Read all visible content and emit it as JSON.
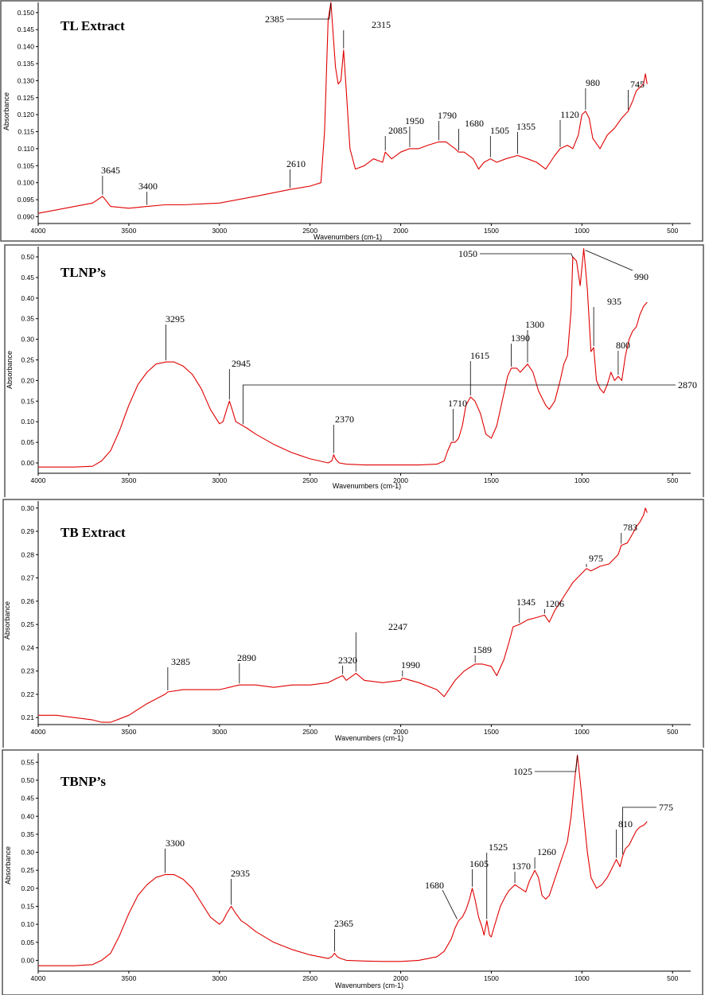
{
  "chart_data": [
    {
      "type": "line",
      "title": "TL Extract",
      "xlabel": "Wavenumbers (cm-1)",
      "ylabel": "Absorbance",
      "xlim": [
        4000,
        400
      ],
      "ylim": [
        0.088,
        0.153
      ],
      "xticks": [
        "4000",
        "3500",
        "3000",
        "2500",
        "2000",
        "1500",
        "1000",
        "500"
      ],
      "yticks": [
        "0.090",
        "0.095",
        "0.100",
        "0.105",
        "0.110",
        "0.115",
        "0.120",
        "0.125",
        "0.130",
        "0.135",
        "0.140",
        "0.145",
        "0.150"
      ],
      "color": "#e00000",
      "series": [
        {
          "x": [
            4000,
            3900,
            3800,
            3700,
            3645,
            3600,
            3500,
            3400,
            3300,
            3200,
            3000,
            2800,
            2610,
            2500,
            2440,
            2420,
            2400,
            2385,
            2360,
            2345,
            2330,
            2315,
            2300,
            2280,
            2250,
            2200,
            2150,
            2100,
            2085,
            2050,
            2000,
            1950,
            1900,
            1850,
            1790,
            1750,
            1700,
            1680,
            1650,
            1600,
            1570,
            1540,
            1505,
            1470,
            1420,
            1355,
            1300,
            1250,
            1200,
            1150,
            1120,
            1080,
            1050,
            1020,
            1000,
            980,
            960,
            940,
            900,
            860,
            820,
            780,
            745,
            720,
            700,
            680,
            660,
            650,
            640
          ],
          "y": [
            0.091,
            0.092,
            0.093,
            0.094,
            0.096,
            0.093,
            0.0925,
            0.093,
            0.0935,
            0.0935,
            0.094,
            0.096,
            0.098,
            0.099,
            0.1,
            0.115,
            0.148,
            0.153,
            0.134,
            0.129,
            0.13,
            0.139,
            0.127,
            0.11,
            0.104,
            0.105,
            0.107,
            0.106,
            0.109,
            0.107,
            0.109,
            0.11,
            0.11,
            0.111,
            0.112,
            0.112,
            0.11,
            0.109,
            0.109,
            0.107,
            0.104,
            0.106,
            0.107,
            0.106,
            0.107,
            0.108,
            0.107,
            0.106,
            0.104,
            0.108,
            0.11,
            0.111,
            0.11,
            0.114,
            0.12,
            0.121,
            0.119,
            0.113,
            0.11,
            0.114,
            0.116,
            0.119,
            0.121,
            0.124,
            0.127,
            0.128,
            0.129,
            0.132,
            0.129
          ]
        }
      ],
      "peaks": [
        {
          "label": "3645",
          "x": 3645,
          "y": 0.096
        },
        {
          "label": "3400",
          "x": 3400,
          "y": 0.093
        },
        {
          "label": "2610",
          "x": 2610,
          "y": 0.098
        },
        {
          "label": "2385",
          "x": 2385,
          "y": 0.153
        },
        {
          "label": "2315",
          "x": 2315,
          "y": 0.139
        },
        {
          "label": "2085",
          "x": 2085,
          "y": 0.109
        },
        {
          "label": "1950",
          "x": 1950,
          "y": 0.11
        },
        {
          "label": "1790",
          "x": 1790,
          "y": 0.112
        },
        {
          "label": "1680",
          "x": 1680,
          "y": 0.109
        },
        {
          "label": "1505",
          "x": 1505,
          "y": 0.107
        },
        {
          "label": "1355",
          "x": 1355,
          "y": 0.108
        },
        {
          "label": "1120",
          "x": 1120,
          "y": 0.11
        },
        {
          "label": "980",
          "x": 980,
          "y": 0.121
        },
        {
          "label": "745",
          "x": 745,
          "y": 0.121
        }
      ]
    },
    {
      "type": "line",
      "title": "TLNP’s",
      "xlabel": "Wavenumbers (cm-1)",
      "ylabel": "Absorbance",
      "xlim": [
        4000,
        400
      ],
      "ylim": [
        -0.025,
        0.525
      ],
      "xticks": [
        "4000",
        "3500",
        "3000",
        "2500",
        "2000",
        "1500",
        "1000",
        "500"
      ],
      "yticks": [
        "0.00",
        "0.05",
        "0.10",
        "0.15",
        "0.20",
        "0.25",
        "0.30",
        "0.35",
        "0.40",
        "0.45",
        "0.50"
      ],
      "color": "#e00000",
      "series": [
        {
          "x": [
            4000,
            3800,
            3700,
            3650,
            3600,
            3550,
            3500,
            3450,
            3400,
            3350,
            3295,
            3250,
            3200,
            3150,
            3100,
            3050,
            3000,
            2980,
            2960,
            2945,
            2930,
            2910,
            2870,
            2850,
            2800,
            2700,
            2600,
            2500,
            2400,
            2380,
            2370,
            2360,
            2340,
            2300,
            2200,
            2100,
            2000,
            1900,
            1800,
            1760,
            1740,
            1720,
            1710,
            1700,
            1680,
            1660,
            1640,
            1615,
            1590,
            1560,
            1530,
            1500,
            1470,
            1440,
            1410,
            1390,
            1360,
            1340,
            1300,
            1270,
            1240,
            1200,
            1180,
            1150,
            1120,
            1100,
            1080,
            1060,
            1050,
            1030,
            1010,
            990,
            970,
            950,
            935,
            920,
            900,
            880,
            860,
            840,
            820,
            800,
            780,
            760,
            740,
            720,
            700,
            680,
            660,
            650,
            640
          ],
          "y": [
            -0.01,
            -0.01,
            -0.008,
            0.005,
            0.03,
            0.08,
            0.14,
            0.19,
            0.22,
            0.24,
            0.245,
            0.245,
            0.235,
            0.215,
            0.18,
            0.13,
            0.095,
            0.1,
            0.13,
            0.15,
            0.13,
            0.1,
            0.09,
            0.085,
            0.07,
            0.045,
            0.025,
            0.01,
            0.0,
            0.005,
            0.02,
            0.01,
            0.0,
            -0.003,
            -0.005,
            -0.005,
            -0.005,
            -0.005,
            -0.003,
            0.005,
            0.03,
            0.05,
            0.05,
            0.05,
            0.06,
            0.09,
            0.14,
            0.16,
            0.15,
            0.12,
            0.07,
            0.06,
            0.09,
            0.15,
            0.21,
            0.23,
            0.23,
            0.22,
            0.24,
            0.22,
            0.175,
            0.14,
            0.13,
            0.15,
            0.2,
            0.24,
            0.26,
            0.37,
            0.5,
            0.49,
            0.43,
            0.52,
            0.42,
            0.27,
            0.28,
            0.2,
            0.18,
            0.17,
            0.19,
            0.22,
            0.2,
            0.21,
            0.2,
            0.26,
            0.3,
            0.32,
            0.33,
            0.36,
            0.38,
            0.385,
            0.39
          ]
        }
      ],
      "peaks": [
        {
          "label": "3295",
          "x": 3295,
          "y": 0.245
        },
        {
          "label": "2945",
          "x": 2945,
          "y": 0.15
        },
        {
          "label": "2870",
          "x": 2870,
          "y": 0.09
        },
        {
          "label": "2370",
          "x": 2370,
          "y": 0.02
        },
        {
          "label": "1710",
          "x": 1710,
          "y": 0.05
        },
        {
          "label": "1615",
          "x": 1615,
          "y": 0.16
        },
        {
          "label": "1390",
          "x": 1390,
          "y": 0.23
        },
        {
          "label": "1300",
          "x": 1300,
          "y": 0.24
        },
        {
          "label": "1050",
          "x": 1050,
          "y": 0.5
        },
        {
          "label": "990",
          "x": 990,
          "y": 0.52
        },
        {
          "label": "935",
          "x": 935,
          "y": 0.28
        },
        {
          "label": "800",
          "x": 800,
          "y": 0.21
        }
      ]
    },
    {
      "type": "line",
      "title": "TB Extract",
      "xlabel": "Wavenumbers (cm-1)",
      "ylabel": "Absorbance",
      "xlim": [
        4000,
        400
      ],
      "ylim": [
        0.207,
        0.303
      ],
      "xticks": [
        "4000",
        "3500",
        "3000",
        "2500",
        "2000",
        "1500",
        "1000",
        "500"
      ],
      "yticks": [
        "0.21",
        "0.22",
        "0.23",
        "0.24",
        "0.25",
        "0.26",
        "0.27",
        "0.28",
        "0.29",
        "0.30"
      ],
      "color": "#e00000",
      "series": [
        {
          "x": [
            4000,
            3900,
            3800,
            3700,
            3650,
            3600,
            3500,
            3400,
            3300,
            3285,
            3200,
            3100,
            3000,
            2890,
            2800,
            2700,
            2600,
            2500,
            2400,
            2350,
            2320,
            2300,
            2247,
            2200,
            2100,
            2000,
            1990,
            1900,
            1800,
            1760,
            1700,
            1650,
            1589,
            1550,
            1500,
            1470,
            1430,
            1400,
            1380,
            1345,
            1300,
            1250,
            1206,
            1180,
            1150,
            1100,
            1050,
            1000,
            975,
            950,
            900,
            850,
            800,
            783,
            750,
            720,
            700,
            680,
            660,
            650,
            640
          ],
          "y": [
            0.211,
            0.211,
            0.21,
            0.209,
            0.208,
            0.208,
            0.211,
            0.216,
            0.22,
            0.221,
            0.222,
            0.222,
            0.222,
            0.224,
            0.224,
            0.223,
            0.224,
            0.224,
            0.225,
            0.227,
            0.228,
            0.226,
            0.229,
            0.226,
            0.225,
            0.226,
            0.227,
            0.225,
            0.222,
            0.219,
            0.226,
            0.23,
            0.233,
            0.233,
            0.232,
            0.228,
            0.235,
            0.243,
            0.249,
            0.25,
            0.252,
            0.253,
            0.254,
            0.251,
            0.256,
            0.262,
            0.268,
            0.272,
            0.274,
            0.273,
            0.275,
            0.276,
            0.28,
            0.284,
            0.285,
            0.289,
            0.292,
            0.294,
            0.297,
            0.3,
            0.298
          ]
        }
      ],
      "peaks": [
        {
          "label": "3285",
          "x": 3285,
          "y": 0.221
        },
        {
          "label": "2890",
          "x": 2890,
          "y": 0.224
        },
        {
          "label": "2320",
          "x": 2320,
          "y": 0.228
        },
        {
          "label": "2247",
          "x": 2247,
          "y": 0.229
        },
        {
          "label": "1990",
          "x": 1990,
          "y": 0.227
        },
        {
          "label": "1589",
          "x": 1589,
          "y": 0.233
        },
        {
          "label": "1345",
          "x": 1345,
          "y": 0.25
        },
        {
          "label": "1206",
          "x": 1206,
          "y": 0.254
        },
        {
          "label": "975",
          "x": 975,
          "y": 0.274
        },
        {
          "label": "783",
          "x": 783,
          "y": 0.284
        }
      ]
    },
    {
      "type": "line",
      "title": "TBNP’s",
      "xlabel": "Wavenumbers (cm-1)",
      "ylabel": "Absorbance",
      "xlim": [
        4000,
        400
      ],
      "ylim": [
        -0.03,
        0.575
      ],
      "xticks": [
        "4000",
        "3500",
        "3000",
        "2500",
        "2000",
        "1500",
        "1000",
        "500"
      ],
      "yticks": [
        "0.00",
        "0.05",
        "0.10",
        "0.15",
        "0.20",
        "0.25",
        "0.30",
        "0.35",
        "0.40",
        "0.45",
        "0.50",
        "0.55"
      ],
      "color": "#e00000",
      "series": [
        {
          "x": [
            4000,
            3800,
            3700,
            3650,
            3600,
            3550,
            3500,
            3450,
            3400,
            3350,
            3300,
            3250,
            3200,
            3150,
            3100,
            3050,
            3000,
            2980,
            2960,
            2935,
            2910,
            2880,
            2850,
            2800,
            2700,
            2600,
            2500,
            2400,
            2380,
            2365,
            2350,
            2330,
            2300,
            2200,
            2100,
            2000,
            1900,
            1800,
            1760,
            1720,
            1700,
            1680,
            1660,
            1640,
            1620,
            1605,
            1590,
            1570,
            1550,
            1540,
            1525,
            1510,
            1500,
            1480,
            1450,
            1420,
            1400,
            1370,
            1340,
            1310,
            1290,
            1260,
            1240,
            1220,
            1200,
            1180,
            1160,
            1140,
            1120,
            1100,
            1080,
            1060,
            1040,
            1025,
            1010,
            990,
            970,
            950,
            920,
            890,
            860,
            840,
            820,
            810,
            800,
            790,
            775,
            760,
            740,
            720,
            700,
            680,
            660,
            650,
            640
          ],
          "y": [
            -0.015,
            -0.015,
            -0.012,
            0.0,
            0.02,
            0.07,
            0.13,
            0.18,
            0.21,
            0.23,
            0.238,
            0.238,
            0.225,
            0.2,
            0.16,
            0.12,
            0.1,
            0.11,
            0.13,
            0.15,
            0.13,
            0.11,
            0.1,
            0.08,
            0.05,
            0.03,
            0.015,
            0.005,
            0.01,
            0.02,
            0.01,
            0.005,
            0.0,
            -0.002,
            -0.003,
            -0.003,
            0.0,
            0.01,
            0.025,
            0.06,
            0.09,
            0.11,
            0.12,
            0.14,
            0.17,
            0.2,
            0.17,
            0.12,
            0.09,
            0.07,
            0.11,
            0.07,
            0.065,
            0.1,
            0.15,
            0.18,
            0.195,
            0.21,
            0.2,
            0.19,
            0.22,
            0.25,
            0.23,
            0.18,
            0.17,
            0.18,
            0.21,
            0.24,
            0.27,
            0.3,
            0.33,
            0.4,
            0.5,
            0.57,
            0.5,
            0.4,
            0.3,
            0.23,
            0.2,
            0.21,
            0.23,
            0.25,
            0.27,
            0.28,
            0.27,
            0.26,
            0.29,
            0.31,
            0.32,
            0.34,
            0.36,
            0.37,
            0.375,
            0.38,
            0.385
          ]
        }
      ],
      "peaks": [
        {
          "label": "3300",
          "x": 3300,
          "y": 0.238
        },
        {
          "label": "2935",
          "x": 2935,
          "y": 0.15
        },
        {
          "label": "2365",
          "x": 2365,
          "y": 0.02
        },
        {
          "label": "1680",
          "x": 1680,
          "y": 0.11
        },
        {
          "label": "1605",
          "x": 1605,
          "y": 0.2
        },
        {
          "label": "1525",
          "x": 1525,
          "y": 0.11
        },
        {
          "label": "1370",
          "x": 1370,
          "y": 0.21
        },
        {
          "label": "1260",
          "x": 1260,
          "y": 0.25
        },
        {
          "label": "1025",
          "x": 1025,
          "y": 0.57
        },
        {
          "label": "810",
          "x": 810,
          "y": 0.28
        },
        {
          "label": "775",
          "x": 775,
          "y": 0.29
        }
      ]
    }
  ]
}
